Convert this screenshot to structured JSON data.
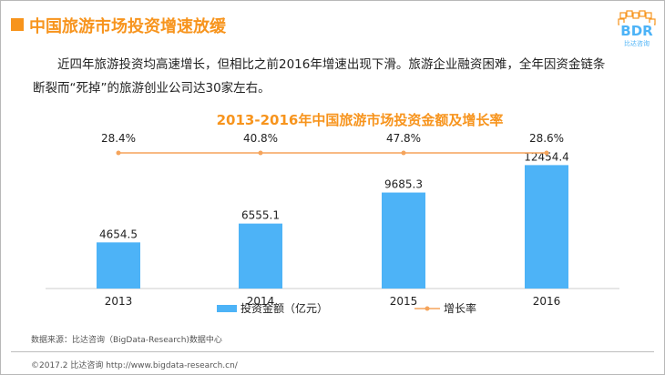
{
  "header": {
    "title": "中国旅游市场投资增速放缓",
    "logo_text": "BDR",
    "logo_sub": "比达咨询"
  },
  "paragraph": "近四年旅游投资均高速增长，但相比之前2016年增速出现下滑。旅游企业融资困难，全年因资金链条断裂而“死掉”的旅游创业公司达30家左右。",
  "footer": {
    "source": "数据来源：比达咨询（BigData-Research)数据中心",
    "copyright": "©2017.2 比达咨询 http://www.bigdata-research.cn/"
  },
  "colors": {
    "accent": "#f7941d",
    "bar": "#4db3f7",
    "line": "#f5a45b"
  },
  "chart_data": {
    "type": "bar",
    "title": "2013-2016年中国旅游市场投资金额及增长率",
    "categories": [
      "2013",
      "2014",
      "2015",
      "2016"
    ],
    "series": [
      {
        "name": "投资金额（亿元）",
        "type": "bar",
        "values": [
          4654.5,
          6555.1,
          9685.3,
          12454.4
        ],
        "labels": [
          "4654.5",
          "6555.1",
          "9685.3",
          "12454.4"
        ]
      },
      {
        "name": "增长率",
        "type": "line",
        "values": [
          28.4,
          40.8,
          47.8,
          28.6
        ],
        "labels": [
          "28.4%",
          "40.8%",
          "47.8%",
          "28.6%"
        ]
      }
    ],
    "ylim": [
      0,
      13500
    ],
    "legend": "bottom",
    "grid": false
  }
}
